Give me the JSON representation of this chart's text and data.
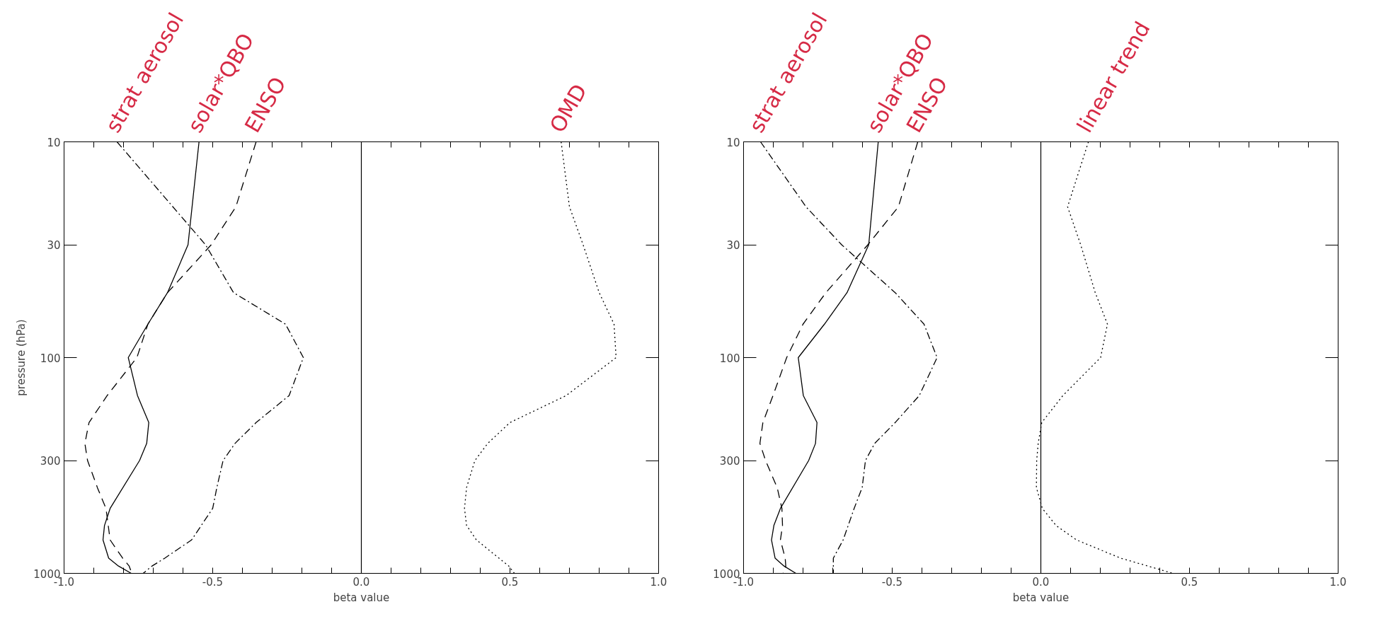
{
  "chart_data": [
    {
      "type": "line",
      "xlabel": "beta value",
      "ylabel": "pressure (hPa)",
      "log": "y",
      "xlim": [
        -1,
        1
      ],
      "ylim": [
        1000,
        10
      ],
      "xticks": [
        {
          "value": -1,
          "label": "-1.0"
        },
        {
          "value": -0.9,
          "label": null
        },
        {
          "value": -0.8,
          "label": null
        },
        {
          "value": -0.7,
          "label": null
        },
        {
          "value": -0.6,
          "label": null
        },
        {
          "value": -0.5,
          "label": "-0.5"
        },
        {
          "value": -0.4,
          "label": null
        },
        {
          "value": -0.3,
          "label": null
        },
        {
          "value": -0.2,
          "label": null
        },
        {
          "value": -0.1,
          "label": null
        },
        {
          "value": 0,
          "label": "0.0"
        },
        {
          "value": 0.1,
          "label": null
        },
        {
          "value": 0.2,
          "label": null
        },
        {
          "value": 0.3,
          "label": null
        },
        {
          "value": 0.4,
          "label": null
        },
        {
          "value": 0.5,
          "label": "0.5"
        },
        {
          "value": 0.6,
          "label": null
        },
        {
          "value": 0.7,
          "label": null
        },
        {
          "value": 0.8,
          "label": null
        },
        {
          "value": 0.9,
          "label": null
        },
        {
          "value": 1,
          "label": "1.0"
        }
      ],
      "yticks": [
        10,
        30,
        100,
        300,
        1000
      ],
      "ref_lines": [
        {
          "axis": "x",
          "value": 0,
          "color": "#000000"
        }
      ],
      "grid": false,
      "series": [
        {
          "name": "strat aerosol",
          "color": "#000000",
          "line_style": "dashdot",
          "x": [
            -0.822,
            -0.524,
            -0.43,
            -0.255,
            -0.195,
            -0.243,
            -0.354,
            -0.425,
            -0.465,
            -0.486,
            -0.5,
            -0.571,
            -0.661,
            -0.704,
            -0.734
          ],
          "values": [
            10,
            30,
            50,
            70,
            100,
            150,
            200,
            250,
            300,
            400,
            500,
            700,
            850,
            925,
            1000
          ]
        },
        {
          "name": "solar*QBO",
          "color": "#000000",
          "line_style": "solid",
          "x": [
            -0.546,
            -0.583,
            -0.652,
            -0.718,
            -0.784,
            -0.753,
            -0.715,
            -0.722,
            -0.746,
            -0.845,
            -0.864,
            -0.869,
            -0.85,
            -0.817,
            -0.774
          ],
          "values": [
            10,
            30,
            50,
            70,
            100,
            150,
            200,
            250,
            300,
            500,
            600,
            700,
            850,
            925,
            1000
          ]
        },
        {
          "name": "ENSO",
          "color": "#000000",
          "line_style": "dashed",
          "x": [
            -0.354,
            -0.422,
            -0.505,
            -0.652,
            -0.718,
            -0.755,
            -0.855,
            -0.916,
            -0.93,
            -0.921,
            -0.888,
            -0.859,
            -0.845,
            -0.803,
            -0.781,
            -0.772
          ],
          "values": [
            10,
            20,
            30,
            50,
            70,
            100,
            150,
            200,
            250,
            300,
            400,
            500,
            700,
            850,
            925,
            1000
          ]
        },
        {
          "name": "OMD",
          "color": "#000000",
          "line_style": "dotted",
          "x": [
            0.672,
            0.7,
            0.746,
            0.8,
            0.85,
            0.857,
            0.689,
            0.5,
            0.425,
            0.382,
            0.354,
            0.347,
            0.354,
            0.387,
            0.463,
            0.496,
            0.515
          ],
          "values": [
            10,
            20,
            30,
            50,
            70,
            100,
            150,
            200,
            250,
            300,
            400,
            500,
            600,
            700,
            850,
            925,
            1000
          ]
        }
      ]
    },
    {
      "type": "line",
      "xlabel": "beta value",
      "log": "y",
      "xlim": [
        -1,
        1
      ],
      "ylim": [
        1000,
        10
      ],
      "xticks": [
        {
          "value": -1,
          "label": "-1.0"
        },
        {
          "value": -0.9,
          "label": null
        },
        {
          "value": -0.8,
          "label": null
        },
        {
          "value": -0.7,
          "label": null
        },
        {
          "value": -0.6,
          "label": null
        },
        {
          "value": -0.5,
          "label": "-0.5"
        },
        {
          "value": -0.4,
          "label": null
        },
        {
          "value": -0.3,
          "label": null
        },
        {
          "value": -0.2,
          "label": null
        },
        {
          "value": -0.1,
          "label": null
        },
        {
          "value": 0,
          "label": "0.0"
        },
        {
          "value": 0.1,
          "label": null
        },
        {
          "value": 0.2,
          "label": null
        },
        {
          "value": 0.3,
          "label": null
        },
        {
          "value": 0.4,
          "label": null
        },
        {
          "value": 0.5,
          "label": "0.5"
        },
        {
          "value": 0.6,
          "label": null
        },
        {
          "value": 0.7,
          "label": null
        },
        {
          "value": 0.8,
          "label": null
        },
        {
          "value": 0.9,
          "label": null
        },
        {
          "value": 1,
          "label": "1.0"
        }
      ],
      "yticks": [
        10,
        30,
        100,
        300,
        1000
      ],
      "ref_lines": [
        {
          "axis": "x",
          "value": 0,
          "color": "#000000"
        }
      ],
      "grid": false,
      "series": [
        {
          "name": "strat aerosol",
          "color": "#000000",
          "line_style": "dashdot",
          "x": [
            -0.943,
            -0.79,
            -0.67,
            -0.49,
            -0.393,
            -0.349,
            -0.409,
            -0.49,
            -0.559,
            -0.59,
            -0.601,
            -0.628,
            -0.665,
            -0.698,
            -0.698
          ],
          "values": [
            10,
            20,
            30,
            50,
            70,
            100,
            150,
            200,
            250,
            300,
            400,
            500,
            700,
            850,
            1000
          ]
        },
        {
          "name": "solar*QBO",
          "color": "#000000",
          "line_style": "solid",
          "x": [
            -0.547,
            -0.579,
            -0.652,
            -0.728,
            -0.816,
            -0.799,
            -0.753,
            -0.758,
            -0.781,
            -0.876,
            -0.898,
            -0.906,
            -0.894,
            -0.864,
            -0.824
          ],
          "values": [
            10,
            30,
            50,
            70,
            100,
            150,
            200,
            250,
            300,
            500,
            600,
            700,
            850,
            925,
            1000
          ]
        },
        {
          "name": "ENSO",
          "color": "#000000",
          "line_style": "dashed",
          "x": [
            -0.414,
            -0.479,
            -0.582,
            -0.723,
            -0.8,
            -0.855,
            -0.901,
            -0.935,
            -0.945,
            -0.926,
            -0.887,
            -0.871,
            -0.869,
            -0.876,
            -0.86,
            -0.858,
            -0.867
          ],
          "values": [
            10,
            20,
            30,
            50,
            70,
            100,
            150,
            200,
            250,
            300,
            400,
            500,
            600,
            700,
            850,
            925,
            1000
          ]
        },
        {
          "name": "linear trend",
          "color": "#000000",
          "line_style": "dotted",
          "x": [
            0.16,
            0.09,
            0.134,
            0.183,
            0.224,
            0.201,
            0.074,
            0.003,
            -0.009,
            -0.014,
            -0.015,
            0.005,
            0.051,
            0.12,
            0.268,
            0.36,
            0.444
          ],
          "values": [
            10,
            20,
            30,
            50,
            70,
            100,
            150,
            200,
            250,
            300,
            400,
            500,
            600,
            700,
            850,
            925,
            1000
          ]
        }
      ]
    }
  ]
}
